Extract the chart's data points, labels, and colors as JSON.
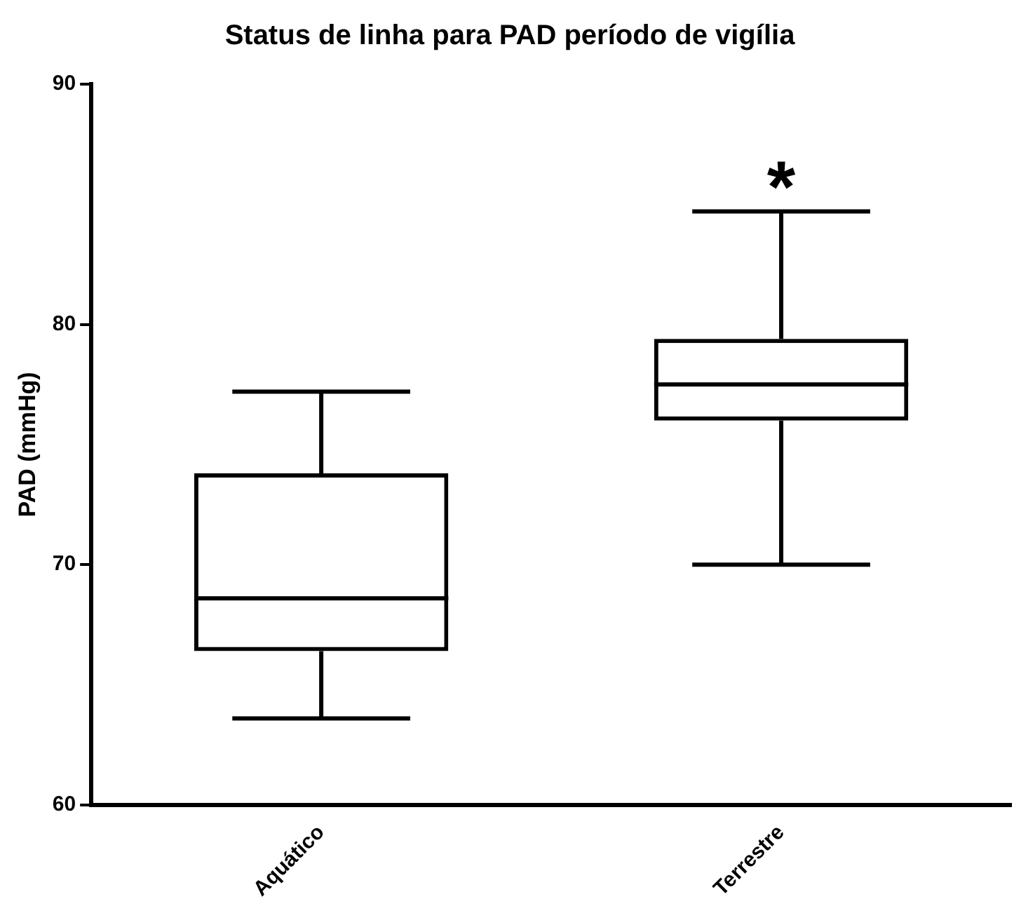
{
  "chart_data": {
    "type": "box",
    "title": "Status de linha para PAD período de vigília",
    "ylabel": "PAD (mmHg)",
    "categories": [
      "Aquático",
      "Terrestre"
    ],
    "boxes": [
      {
        "low": 63.6,
        "q1": 66.4,
        "median": 68.6,
        "q3": 73.8,
        "high": 77.2
      },
      {
        "low": 70.0,
        "q1": 76.0,
        "median": 77.5,
        "q3": 79.4,
        "high": 84.7
      }
    ],
    "color": "#000000",
    "ylim": [
      60,
      90
    ],
    "yticks": [
      60,
      70,
      80,
      90
    ],
    "grid": false,
    "legend": false,
    "annotations": [
      "*"
    ]
  }
}
